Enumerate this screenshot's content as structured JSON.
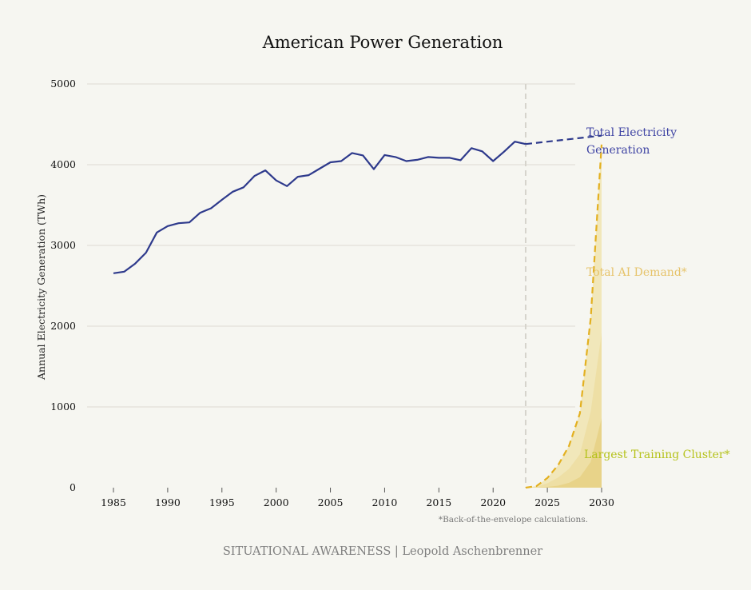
{
  "chart_data": {
    "type": "line",
    "title": "American Power Generation",
    "xlabel": "",
    "ylabel": "Annual Electricity Generation (TWh)",
    "xlim": [
      1985,
      2030
    ],
    "ylim": [
      0,
      5000
    ],
    "x_ticks": [
      1985,
      1990,
      1995,
      2000,
      2005,
      2010,
      2015,
      2020,
      2025,
      2030
    ],
    "y_ticks": [
      0,
      1000,
      2000,
      3000,
      4000,
      5000
    ],
    "grid": "horizontal",
    "reference_line_x": 2023,
    "series": [
      {
        "name": "Total Electricity Generation",
        "label_lines": [
          "Total Electricity",
          "Generation"
        ],
        "color": "#2e3a8c",
        "style": "solid",
        "x": [
          1985,
          1986,
          1987,
          1988,
          1989,
          1990,
          1991,
          1992,
          1993,
          1994,
          1995,
          1996,
          1997,
          1998,
          1999,
          2000,
          2001,
          2002,
          2003,
          2004,
          2005,
          2006,
          2007,
          2008,
          2009,
          2010,
          2011,
          2012,
          2013,
          2014,
          2015,
          2016,
          2017,
          2018,
          2019,
          2020,
          2021,
          2022,
          2023
        ],
        "y": [
          2655,
          2675,
          2775,
          2910,
          3160,
          3240,
          3275,
          3285,
          3405,
          3460,
          3565,
          3665,
          3720,
          3860,
          3930,
          3805,
          3735,
          3850,
          3870,
          3950,
          4030,
          4045,
          4145,
          4115,
          3945,
          4120,
          4095,
          4045,
          4060,
          4095,
          4085,
          4085,
          4055,
          4205,
          4165,
          4045,
          4160,
          4285,
          4255
        ]
      },
      {
        "name": "Total Electricity Generation (projection)",
        "color": "#2e3a8c",
        "style": "dashed",
        "x": [
          2023,
          2030
        ],
        "y": [
          4255,
          4360
        ]
      },
      {
        "name": "Total AI Demand*",
        "label_lines": [
          "Total AI Demand*"
        ],
        "color": "#e3b020",
        "style": "dashed",
        "x": [
          2023,
          2024,
          2025,
          2026,
          2027,
          2028,
          2029,
          2030
        ],
        "y": [
          0,
          20,
          120,
          280,
          520,
          920,
          2100,
          4250
        ]
      },
      {
        "name": "Largest Training Cluster*",
        "label_lines": [
          "Largest Training Cluster*"
        ],
        "color": "#b7c41a",
        "style": "area",
        "x": [
          2023,
          2024,
          2025,
          2026,
          2027,
          2028,
          2029,
          2030
        ],
        "y": [
          0,
          2,
          10,
          25,
          60,
          130,
          320,
          860
        ]
      }
    ],
    "annotations": [
      "*Back-of-the-envelope calculations."
    ]
  },
  "credit": "SITUATIONAL AWARENESS | Leopold Aschenbrenner"
}
